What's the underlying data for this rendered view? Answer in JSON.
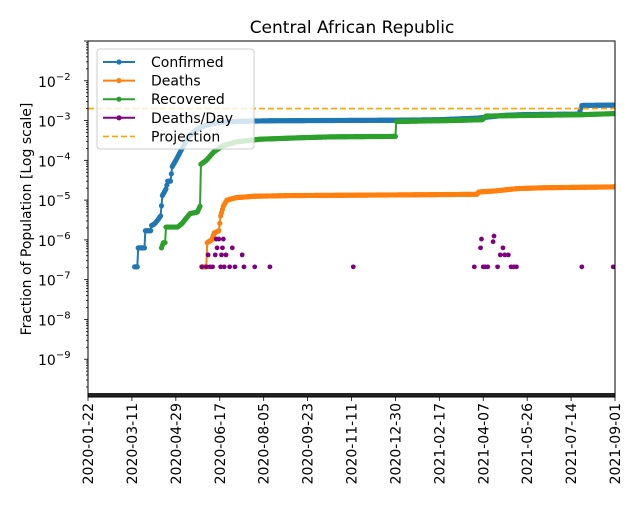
{
  "chart_data": {
    "type": "line",
    "title": "Central African Republic",
    "xlabel": "",
    "ylabel": "Fraction of Population [Log scale]",
    "yscale": "log",
    "ylim_log10": [
      -9.95,
      -1.0
    ],
    "x_range": [
      "2020-01-22",
      "2021-09-01"
    ],
    "x_ticks": [
      "2020-01-22",
      "2020-03-11",
      "2020-04-29",
      "2020-06-17",
      "2020-08-05",
      "2020-09-23",
      "2020-11-11",
      "2020-12-30",
      "2021-02-17",
      "2021-04-07",
      "2021-05-26",
      "2021-07-14",
      "2021-09-01"
    ],
    "y_ticks": [
      {
        "exp": -2,
        "label_base": "10",
        "label_exp": "−2"
      },
      {
        "exp": -3,
        "label_base": "10",
        "label_exp": "−3"
      },
      {
        "exp": -4,
        "label_base": "10",
        "label_exp": "−4"
      },
      {
        "exp": -5,
        "label_base": "10",
        "label_exp": "−5"
      },
      {
        "exp": -6,
        "label_base": "10",
        "label_exp": "−6"
      },
      {
        "exp": -7,
        "label_base": "10",
        "label_exp": "−7"
      },
      {
        "exp": -8,
        "label_base": "10",
        "label_exp": "−8"
      },
      {
        "exp": -9,
        "label_base": "10",
        "label_exp": "−9"
      }
    ],
    "grid": false,
    "legend_position": "top-left",
    "legend": [
      {
        "label": "Confirmed",
        "color": "#1f77b4",
        "style": "line-marker"
      },
      {
        "label": "Deaths",
        "color": "#ff7f0e",
        "style": "line-marker"
      },
      {
        "label": "Recovered",
        "color": "#2ca02c",
        "style": "line-marker"
      },
      {
        "label": "Deaths/Day",
        "color": "#800080",
        "style": "line-marker"
      },
      {
        "label": "Projection",
        "color": "#ffa500",
        "style": "dashed"
      }
    ],
    "projection": {
      "name": "Projection",
      "value": 0.002,
      "color": "#ffa500"
    },
    "series": [
      {
        "name": "Confirmed",
        "color": "#1f77b4",
        "points": [
          [
            "2020-03-14",
            2.1e-07
          ],
          [
            "2020-03-17",
            2.1e-07
          ],
          [
            "2020-03-18",
            6.3e-07
          ],
          [
            "2020-03-25",
            6.3e-07
          ],
          [
            "2020-03-26",
            1.7e-06
          ],
          [
            "2020-04-01",
            1.7e-06
          ],
          [
            "2020-04-02",
            2.3e-06
          ],
          [
            "2020-04-05",
            2.5e-06
          ],
          [
            "2020-04-09",
            3.2e-06
          ],
          [
            "2020-04-12",
            4e-06
          ],
          [
            "2020-04-14",
            1.3e-05
          ],
          [
            "2020-04-18",
            1.9e-05
          ],
          [
            "2020-04-20",
            3e-05
          ],
          [
            "2020-04-23",
            3e-05
          ],
          [
            "2020-04-25",
            7e-05
          ],
          [
            "2020-04-30",
            0.00011
          ],
          [
            "2020-05-06",
            0.0002
          ],
          [
            "2020-05-12",
            0.00035
          ],
          [
            "2020-05-20",
            0.00055
          ],
          [
            "2020-05-28",
            0.0007
          ],
          [
            "2020-06-07",
            0.00082
          ],
          [
            "2020-06-20",
            0.00092
          ],
          [
            "2020-07-10",
            0.00096
          ],
          [
            "2020-08-15",
            0.00099
          ],
          [
            "2020-10-01",
            0.001
          ],
          [
            "2020-12-30",
            0.00102
          ],
          [
            "2021-02-17",
            0.00105
          ],
          [
            "2021-03-31",
            0.00115
          ],
          [
            "2021-04-30",
            0.00135
          ],
          [
            "2021-05-26",
            0.00142
          ],
          [
            "2021-07-23",
            0.00145
          ],
          [
            "2021-07-26",
            0.0024
          ],
          [
            "2021-09-01",
            0.00245
          ]
        ]
      },
      {
        "name": "Recovered",
        "color": "#2ca02c",
        "points": [
          [
            "2020-04-13",
            6.3e-07
          ],
          [
            "2020-04-15",
            8.5e-07
          ],
          [
            "2020-04-17",
            8.5e-07
          ],
          [
            "2020-04-18",
            2.1e-06
          ],
          [
            "2020-05-01",
            2.1e-06
          ],
          [
            "2020-05-06",
            2.6e-06
          ],
          [
            "2020-05-11",
            3.6e-06
          ],
          [
            "2020-05-15",
            4.6e-06
          ],
          [
            "2020-05-23",
            5e-06
          ],
          [
            "2020-05-26",
            7e-06
          ],
          [
            "2020-05-27",
            8e-05
          ],
          [
            "2020-06-02",
            0.0001
          ],
          [
            "2020-06-10",
            0.00016
          ],
          [
            "2020-06-20",
            0.00023
          ],
          [
            "2020-07-05",
            0.00029
          ],
          [
            "2020-08-01",
            0.00034
          ],
          [
            "2020-09-15",
            0.00037
          ],
          [
            "2020-10-20",
            0.00039
          ],
          [
            "2020-12-30",
            0.0004
          ],
          [
            "2020-12-31",
            0.00095
          ],
          [
            "2021-03-01",
            0.001
          ],
          [
            "2021-04-06",
            0.00105
          ],
          [
            "2021-04-10",
            0.0013
          ],
          [
            "2021-06-01",
            0.00135
          ],
          [
            "2021-07-24",
            0.0014
          ],
          [
            "2021-09-01",
            0.0015
          ]
        ]
      },
      {
        "name": "Deaths",
        "color": "#ff7f0e",
        "points": [
          [
            "2020-05-28",
            2.1e-07
          ],
          [
            "2020-06-02",
            2.1e-07
          ],
          [
            "2020-06-03",
            8.5e-07
          ],
          [
            "2020-06-08",
            1e-06
          ],
          [
            "2020-06-11",
            1.5e-06
          ],
          [
            "2020-06-16",
            1.7e-06
          ],
          [
            "2020-06-18",
            4e-06
          ],
          [
            "2020-06-21",
            7e-06
          ],
          [
            "2020-06-25",
            1e-05
          ],
          [
            "2020-07-05",
            1.15e-05
          ],
          [
            "2020-07-25",
            1.25e-05
          ],
          [
            "2020-09-01",
            1.3e-05
          ],
          [
            "2020-12-30",
            1.35e-05
          ],
          [
            "2021-03-31",
            1.4e-05
          ],
          [
            "2021-04-02",
            1.6e-05
          ],
          [
            "2021-04-20",
            1.7e-05
          ],
          [
            "2021-05-15",
            1.95e-05
          ],
          [
            "2021-06-15",
            2.05e-05
          ],
          [
            "2021-09-01",
            2.15e-05
          ]
        ]
      },
      {
        "name": "Deaths/Day",
        "color": "#800080",
        "points": [
          [
            "2020-05-28",
            2.1e-07
          ],
          [
            "2020-06-02",
            2.1e-07
          ],
          [
            "2020-06-04",
            4.2e-07
          ],
          [
            "2020-06-06",
            2.1e-07
          ],
          [
            "2020-06-09",
            2.1e-07
          ],
          [
            "2020-06-12",
            4.2e-07
          ],
          [
            "2020-06-13",
            1.05e-06
          ],
          [
            "2020-06-14",
            6.3e-07
          ],
          [
            "2020-06-16",
            1.05e-06
          ],
          [
            "2020-06-18",
            2.1e-07
          ],
          [
            "2020-06-19",
            4.2e-07
          ],
          [
            "2020-06-20",
            6.3e-07
          ],
          [
            "2020-06-21",
            1.05e-06
          ],
          [
            "2020-06-22",
            2.1e-07
          ],
          [
            "2020-06-24",
            4.2e-07
          ],
          [
            "2020-06-28",
            2.1e-07
          ],
          [
            "2020-07-01",
            6.3e-07
          ],
          [
            "2020-07-04",
            2.1e-07
          ],
          [
            "2020-07-12",
            4.2e-07
          ],
          [
            "2020-07-14",
            2.1e-07
          ],
          [
            "2020-07-26",
            2.1e-07
          ],
          [
            "2020-08-12",
            2.1e-07
          ],
          [
            "2020-11-13",
            2.1e-07
          ],
          [
            "2021-03-28",
            2.1e-07
          ],
          [
            "2021-04-04",
            6.3e-07
          ],
          [
            "2021-04-05",
            1.05e-06
          ],
          [
            "2021-04-07",
            2.1e-07
          ],
          [
            "2021-04-09",
            2.1e-07
          ],
          [
            "2021-04-12",
            2.1e-07
          ],
          [
            "2021-04-18",
            9e-07
          ],
          [
            "2021-04-19",
            1.25e-06
          ],
          [
            "2021-04-23",
            2.1e-07
          ],
          [
            "2021-04-26",
            4.2e-07
          ],
          [
            "2021-04-29",
            6.3e-07
          ],
          [
            "2021-05-01",
            4.2e-07
          ],
          [
            "2021-05-05",
            4.2e-07
          ],
          [
            "2021-05-08",
            2.1e-07
          ],
          [
            "2021-05-11",
            2.1e-07
          ],
          [
            "2021-05-14",
            2.1e-07
          ],
          [
            "2021-07-26",
            2.1e-07
          ],
          [
            "2021-08-30",
            2.1e-07
          ]
        ]
      }
    ]
  }
}
